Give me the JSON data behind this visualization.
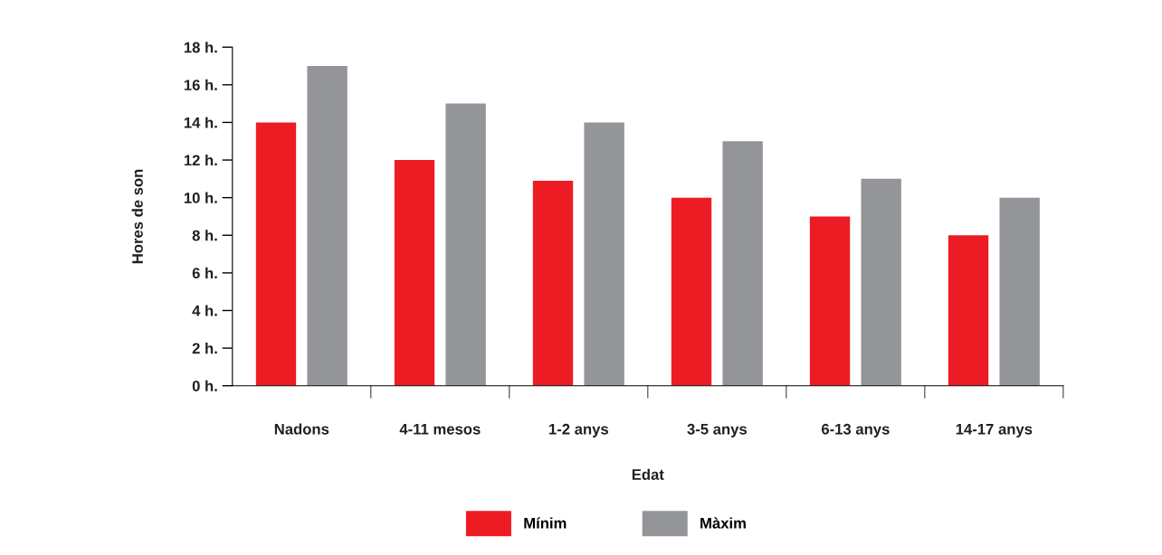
{
  "chart_data": {
    "type": "bar",
    "xlabel": "Edat",
    "ylabel": "Hores de son",
    "categories": [
      "Nadons",
      "4-11 mesos",
      "1-2 anys",
      "3-5 anys",
      "6-13 anys",
      "14-17 anys"
    ],
    "series": [
      {
        "name": "Mínim",
        "color": "#ed1c24",
        "values": [
          14,
          12,
          10.9,
          10,
          9,
          8
        ]
      },
      {
        "name": "Màxim",
        "color": "#939598",
        "values": [
          17,
          15,
          14,
          13,
          11,
          10
        ]
      }
    ],
    "ylim": [
      0,
      18
    ],
    "yticks": [
      {
        "value": 0,
        "label": "0 h."
      },
      {
        "value": 2,
        "label": "2 h."
      },
      {
        "value": 4,
        "label": "4 h."
      },
      {
        "value": 6,
        "label": "6 h."
      },
      {
        "value": 8,
        "label": "8 h."
      },
      {
        "value": 10,
        "label": "10 h."
      },
      {
        "value": 12,
        "label": "12 h."
      },
      {
        "value": 14,
        "label": "14 h."
      },
      {
        "value": 16,
        "label": "16 h."
      },
      {
        "value": 18,
        "label": "18 h."
      }
    ],
    "grid": false,
    "legend": "bottom"
  }
}
